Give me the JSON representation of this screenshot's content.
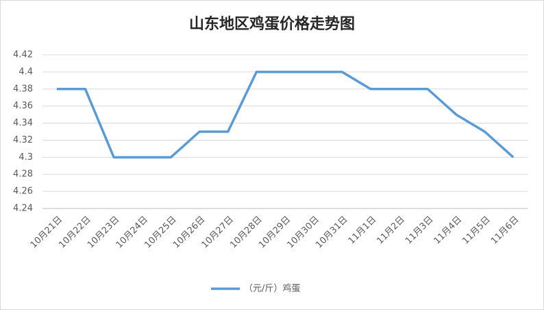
{
  "chart_data": {
    "type": "line",
    "title": "山东地区鸡蛋价格走势图",
    "categories": [
      "10月21日",
      "10月22日",
      "10月23日",
      "10月24日",
      "10月25日",
      "10月26日",
      "10月27日",
      "10月28日",
      "10月29日",
      "10月30日",
      "10月31日",
      "11月1日",
      "11月2日",
      "11月3日",
      "11月4日",
      "11月5日",
      "11月6日"
    ],
    "series": [
      {
        "name": "（元/斤）鸡蛋",
        "color": "#5b9bd5",
        "values": [
          4.38,
          4.38,
          4.3,
          4.3,
          4.3,
          4.33,
          4.33,
          4.4,
          4.4,
          4.4,
          4.4,
          4.38,
          4.38,
          4.38,
          4.35,
          4.33,
          4.3
        ]
      }
    ],
    "ylim": [
      4.24,
      4.42
    ],
    "yticks": [
      4.24,
      4.26,
      4.28,
      4.3,
      4.32,
      4.34,
      4.36,
      4.38,
      4.4,
      4.42
    ],
    "grid": true,
    "legend": "bottom"
  }
}
